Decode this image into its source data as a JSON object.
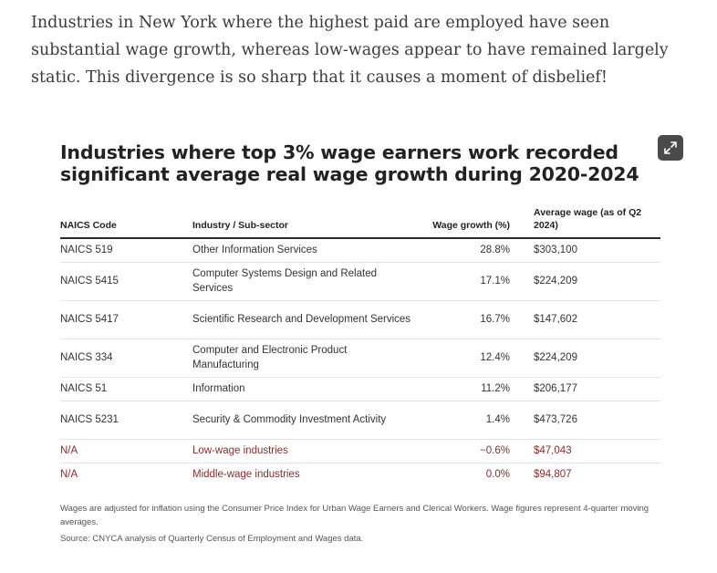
{
  "intro_text": "Industries in New York where the highest paid are employed have seen substantial wage growth, whereas low-wages appear to have remained largely static. This divergence is so sharp that it causes a moment of disbelief!",
  "card": {
    "title": "Industries where top 3% wage earners work recorded significant average real wage growth during 2020-2024",
    "expand_icon": "expand-arrows-icon",
    "accent_color": "#8e2b2b"
  },
  "table": {
    "headers": [
      "NAICS Code",
      "Industry / Sub-sector",
      "Wage growth (%)",
      "Average wage (as of Q2 2024)"
    ],
    "rows": [
      {
        "code": "NAICS 519",
        "industry": "Other Information Services",
        "growth": "28.8%",
        "wage": "$303,100"
      },
      {
        "code": "NAICS 5415",
        "industry": "Computer Systems Design and Related Services",
        "growth": "17.1%",
        "wage": "$224,209"
      },
      {
        "code": "NAICS 5417",
        "industry": "Scientific Research and Development Services",
        "growth": "16.7%",
        "wage": "$147,602"
      },
      {
        "code": "NAICS 334",
        "industry": "Computer and Electronic Product Manufacturing",
        "growth": "12.4%",
        "wage": "$224,209"
      },
      {
        "code": "NAICS 51",
        "industry": "Information",
        "growth": "11.2%",
        "wage": "$206,177"
      },
      {
        "code": "NAICS 5231",
        "industry": "Security & Commodity Investment Activity",
        "growth": "1.4%",
        "wage": "$473,726"
      },
      {
        "code": "N/A",
        "industry": "Low-wage industries",
        "growth": "−0.6%",
        "wage": "$47,043"
      },
      {
        "code": "N/A",
        "industry": "Middle-wage industries",
        "growth": "0.0%",
        "wage": "$94,807"
      }
    ]
  },
  "notes": {
    "footnote": "Wages are adjusted for inflation using the Consumer Price Index for Urban Wage Earners and Clerical Workers. Wage figures represent 4-quarter moving averages.",
    "source": "Source: CNYCA analysis of Quarterly Census of Employment and Wages data."
  }
}
